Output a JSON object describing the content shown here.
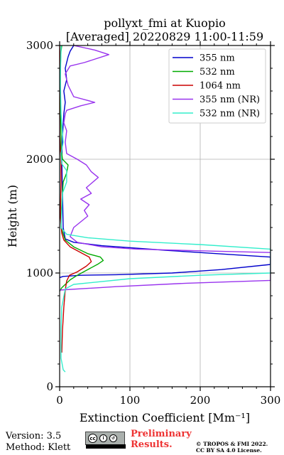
{
  "chart_data": {
    "type": "line",
    "title": "pollyxt_fmi at Kuopio",
    "subtitle": "[Averaged] 20220829 11:00-11:59",
    "xlabel": "Extinction Coefficient [Mm⁻¹]",
    "ylabel": "Height (m)",
    "xlim": [
      0,
      300
    ],
    "ylim": [
      0,
      3000
    ],
    "xticks": [
      0,
      100,
      200,
      300
    ],
    "yticks": [
      0,
      1000,
      2000,
      3000
    ],
    "grid": true,
    "legend_position": "top-right",
    "series": [
      {
        "name": "355 nm",
        "color": "#0000cc",
        "points": [
          [
            0,
            960
          ],
          [
            5,
            970
          ],
          [
            30,
            980
          ],
          [
            80,
            985
          ],
          [
            160,
            1000
          ],
          [
            230,
            1030
          ],
          [
            300,
            1075
          ],
          [
            300,
            1140
          ],
          [
            250,
            1160
          ],
          [
            150,
            1200
          ],
          [
            60,
            1240
          ],
          [
            20,
            1270
          ],
          [
            8,
            1300
          ],
          [
            5,
            1400
          ],
          [
            4,
            1700
          ],
          [
            3,
            2000
          ],
          [
            4,
            2200
          ],
          [
            6,
            2400
          ],
          [
            8,
            2500
          ],
          [
            6,
            2600
          ],
          [
            10,
            2700
          ],
          [
            8,
            2800
          ],
          [
            12,
            2900
          ],
          [
            15,
            2950
          ],
          [
            20,
            3000
          ]
        ]
      },
      {
        "name": "532 nm",
        "color": "#00aa00",
        "points": [
          [
            0,
            840
          ],
          [
            3,
            870
          ],
          [
            15,
            940
          ],
          [
            25,
            980
          ],
          [
            40,
            1030
          ],
          [
            55,
            1080
          ],
          [
            62,
            1110
          ],
          [
            58,
            1140
          ],
          [
            40,
            1170
          ],
          [
            20,
            1230
          ],
          [
            8,
            1290
          ],
          [
            2,
            1400
          ],
          [
            2,
            1500
          ],
          [
            5,
            1800
          ],
          [
            10,
            1880
          ],
          [
            12,
            1950
          ],
          [
            4,
            2000
          ],
          [
            2,
            2100
          ],
          [
            2,
            2200
          ],
          [
            1,
            2500
          ],
          [
            1,
            2800
          ],
          [
            2,
            2950
          ],
          [
            3,
            3000
          ]
        ]
      },
      {
        "name": "1064 nm",
        "color": "#cc0000",
        "points": [
          [
            3,
            300
          ],
          [
            4,
            500
          ],
          [
            5,
            600
          ],
          [
            6,
            700
          ],
          [
            8,
            850
          ],
          [
            10,
            930
          ],
          [
            14,
            980
          ],
          [
            25,
            1010
          ],
          [
            38,
            1060
          ],
          [
            45,
            1100
          ],
          [
            42,
            1140
          ],
          [
            30,
            1180
          ],
          [
            15,
            1230
          ],
          [
            6,
            1290
          ],
          [
            3,
            1350
          ],
          [
            1,
            1500
          ],
          [
            2,
            1800
          ],
          [
            2,
            2000
          ],
          [
            0,
            2200
          ],
          [
            0,
            2500
          ],
          [
            1,
            2800
          ],
          [
            0,
            3000
          ]
        ]
      },
      {
        "name": "355 nm (NR)",
        "color": "#9933ee",
        "points": [
          [
            0,
            850
          ],
          [
            80,
            880
          ],
          [
            180,
            910
          ],
          [
            300,
            935
          ],
          [
            300,
            1180
          ],
          [
            200,
            1195
          ],
          [
            110,
            1210
          ],
          [
            60,
            1230
          ],
          [
            25,
            1270
          ],
          [
            15,
            1320
          ],
          [
            20,
            1400
          ],
          [
            30,
            1450
          ],
          [
            40,
            1500
          ],
          [
            35,
            1550
          ],
          [
            42,
            1600
          ],
          [
            30,
            1650
          ],
          [
            45,
            1700
          ],
          [
            38,
            1750
          ],
          [
            55,
            1840
          ],
          [
            45,
            1890
          ],
          [
            38,
            1950
          ],
          [
            25,
            2000
          ],
          [
            10,
            2050
          ],
          [
            8,
            2150
          ],
          [
            10,
            2250
          ],
          [
            6,
            2320
          ],
          [
            8,
            2400
          ],
          [
            10,
            2430
          ],
          [
            30,
            2470
          ],
          [
            50,
            2500
          ],
          [
            20,
            2550
          ],
          [
            12,
            2650
          ],
          [
            8,
            2750
          ],
          [
            15,
            2820
          ],
          [
            35,
            2850
          ],
          [
            70,
            2920
          ],
          [
            50,
            2960
          ],
          [
            20,
            3000
          ]
        ]
      },
      {
        "name": "532 nm (NR)",
        "color": "#33eecc",
        "points": [
          [
            8,
            130
          ],
          [
            5,
            150
          ],
          [
            2,
            250
          ],
          [
            2,
            500
          ],
          [
            3,
            700
          ],
          [
            8,
            860
          ],
          [
            20,
            900
          ],
          [
            100,
            950
          ],
          [
            200,
            980
          ],
          [
            300,
            1000
          ],
          [
            300,
            1210
          ],
          [
            200,
            1250
          ],
          [
            100,
            1280
          ],
          [
            40,
            1310
          ],
          [
            10,
            1340
          ],
          [
            2,
            1400
          ],
          [
            4,
            1700
          ],
          [
            10,
            1800
          ],
          [
            10,
            1900
          ],
          [
            3,
            1960
          ],
          [
            2,
            2050
          ],
          [
            5,
            2150
          ],
          [
            2,
            2400
          ],
          [
            1,
            2700
          ],
          [
            2,
            3000
          ]
        ]
      }
    ]
  },
  "footer": {
    "version": "Version: 3.5",
    "method": "Method: Klett",
    "preliminary_line1": "Preliminary",
    "preliminary_line2": "Results.",
    "copyright_line1": "© TROPOS & FMI 2022.",
    "copyright_line2": "CC BY SA 4.0 License.",
    "license_badge": "cc by sa"
  }
}
